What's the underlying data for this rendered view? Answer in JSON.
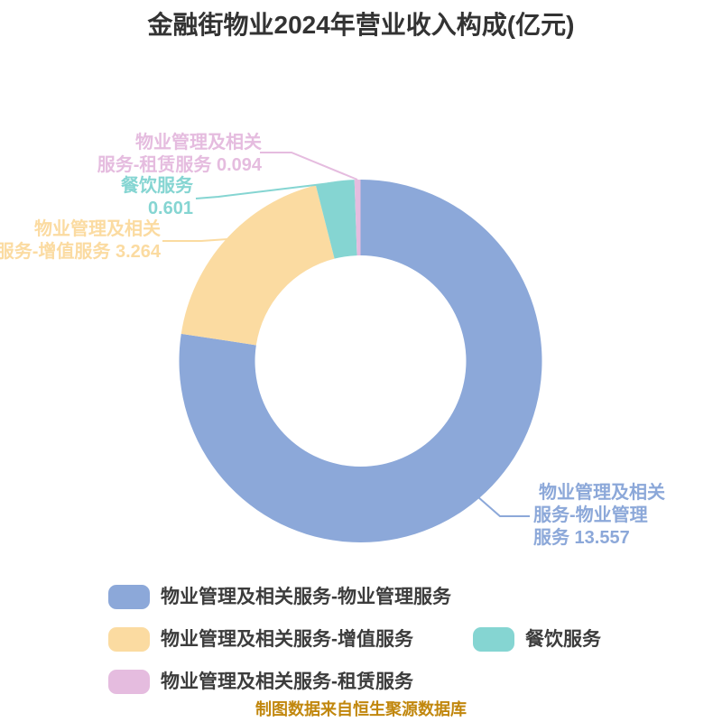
{
  "chart_data": {
    "type": "pie",
    "donut": true,
    "title": "金融街物业2024年营业收入构成(亿元)",
    "unit": "亿元",
    "start_angle_deg_from_top": 0,
    "direction": "clockwise",
    "inner_radius_ratio": 0.582,
    "total": 17.516,
    "series": [
      {
        "name": "物业管理及相关服务-物业管理服务",
        "value": 13.557,
        "color": "#8CA8D9"
      },
      {
        "name": "物业管理及相关服务-增值服务",
        "value": 3.264,
        "color": "#FBDBA1"
      },
      {
        "name": "餐饮服务",
        "value": 0.601,
        "color": "#85D5D2"
      },
      {
        "name": "物业管理及相关服务-租赁服务",
        "value": 0.094,
        "color": "#E5BCDF"
      }
    ],
    "legend_position": "bottom",
    "source_note": "制图数据来自恒生聚源数据库"
  },
  "wedge_labels": {
    "management": {
      "lines": [
        "物业管理及相关",
        "服务-物业管理",
        "服务 13.557"
      ]
    },
    "value_added": {
      "lines": [
        "物业管理及相关",
        "服务-增值服务 3.264"
      ]
    },
    "catering": {
      "lines": [
        "餐饮服务",
        "0.601"
      ]
    },
    "rental": {
      "lines": [
        "物业管理及相关",
        "服务-租赁服务 0.094"
      ]
    }
  },
  "legend": {
    "items": [
      {
        "label": "物业管理及相关服务-物业管理服务",
        "color": "#8CA8D9"
      },
      {
        "label": "物业管理及相关服务-增值服务",
        "color": "#FBDBA1"
      },
      {
        "label": "餐饮服务",
        "color": "#85D5D2"
      },
      {
        "label": "物业管理及相关服务-租赁服务",
        "color": "#E5BCDF"
      }
    ]
  },
  "colors": {
    "background": "#FFFFFF",
    "title_text": "#333333",
    "legend_text": "#3C3C3C",
    "source_note_text": "#C1870D"
  }
}
